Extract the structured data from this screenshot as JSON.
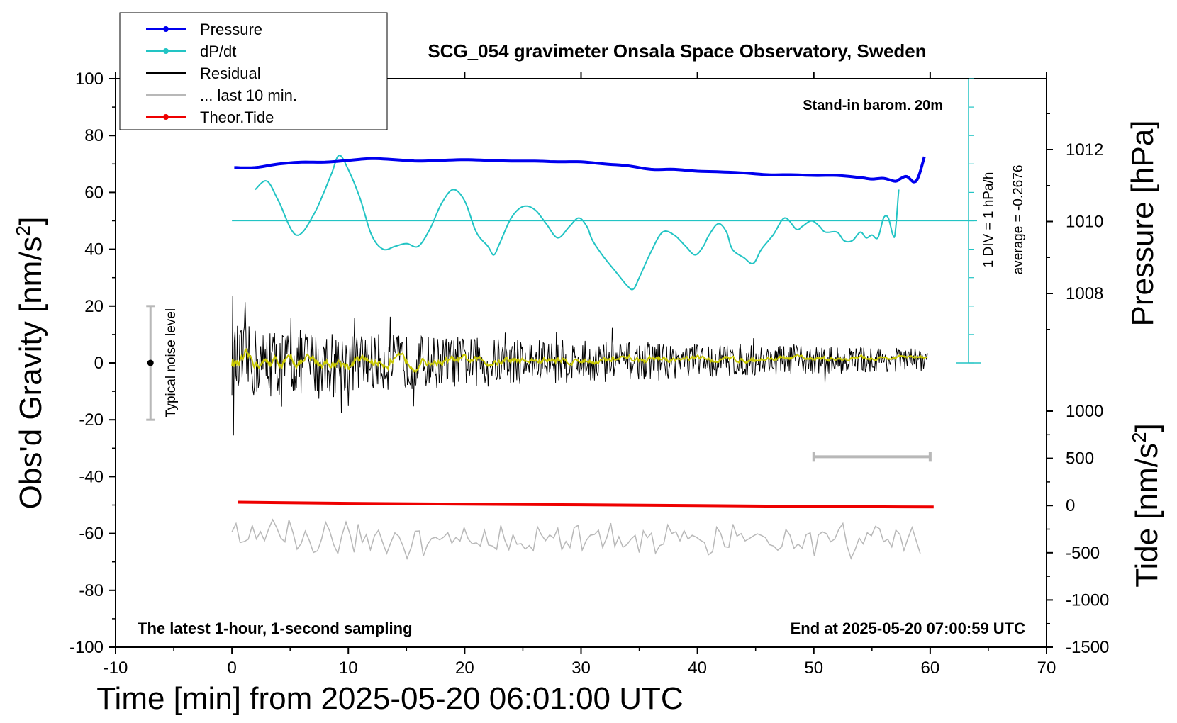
{
  "chart_data": {
    "type": "line",
    "title": "SCG_054 gravimeter Onsala Space Observatory, Sweden",
    "xlabel": "Time [min] from 2025-05-20 06:01:00 UTC",
    "ylabel_left_main": "Obs'd Gravity [nm/s",
    "ylabel_left_sup": "2",
    "ylabel_left_end": "]",
    "ylabel_right_top": "Pressure [hPa]",
    "ylabel_right_bottom_main": "Tide [nm/s",
    "ylabel_right_bottom_sup": "2",
    "ylabel_right_bottom_end": "]",
    "xlim": [
      -10,
      70
    ],
    "ylim": [
      -100,
      100
    ],
    "pressure_axis": {
      "range": [
        1006,
        1014
      ],
      "ticks": [
        1008,
        1010,
        1012
      ]
    },
    "tide_axis": {
      "range": [
        -1500,
        1000
      ],
      "ticks": [
        1000,
        500,
        0,
        -500,
        -1000,
        -1500
      ]
    },
    "x_ticks": [
      -10,
      0,
      10,
      20,
      30,
      40,
      50,
      60,
      70
    ],
    "y_ticks": [
      100,
      80,
      60,
      40,
      20,
      0,
      -20,
      -40,
      -60,
      -80,
      -100
    ],
    "legend": [
      {
        "name": "Pressure",
        "color": "#0000ee",
        "marker": true
      },
      {
        "name": "dP/dt",
        "color": "#22c4c4",
        "marker": true
      },
      {
        "name": "Residual",
        "color": "#000000",
        "marker": false
      },
      {
        "name": "... last 10 min.",
        "color": "#b8b8b8",
        "marker": false
      },
      {
        "name": "Theor.Tide",
        "color": "#ee0000",
        "marker": true
      }
    ],
    "annotations": {
      "barom": "Stand-in barom. 20m",
      "latest": "The latest 1-hour, 1-second sampling",
      "end": "End at 2025-05-20 07:00:59 UTC",
      "noise": "Typical noise level",
      "dpdt_scale": "1 DIV = 1 hPa/h",
      "dpdt_average": "average = -0.2676"
    },
    "colors": {
      "pressure": "#0000ee",
      "dpdt": "#22c4c4",
      "residual": "#000000",
      "residual_smooth": "#c8c800",
      "last10": "#b8b8b8",
      "tide": "#ee0000",
      "noise_bar": "#b8b8b8"
    },
    "series": [
      {
        "name": "Pressure",
        "unit": "hPa",
        "points": [
          [
            0.2,
            1011.5
          ],
          [
            2,
            1011.5
          ],
          [
            4,
            1011.6
          ],
          [
            6,
            1011.65
          ],
          [
            8,
            1011.65
          ],
          [
            10,
            1011.7
          ],
          [
            12,
            1011.75
          ],
          [
            14,
            1011.72
          ],
          [
            16,
            1011.68
          ],
          [
            18,
            1011.7
          ],
          [
            20,
            1011.72
          ],
          [
            22,
            1011.7
          ],
          [
            24,
            1011.68
          ],
          [
            26,
            1011.68
          ],
          [
            28,
            1011.66
          ],
          [
            30,
            1011.66
          ],
          [
            32,
            1011.6
          ],
          [
            34,
            1011.55
          ],
          [
            36,
            1011.45
          ],
          [
            38,
            1011.45
          ],
          [
            40,
            1011.4
          ],
          [
            42,
            1011.38
          ],
          [
            44,
            1011.35
          ],
          [
            46,
            1011.3
          ],
          [
            48,
            1011.3
          ],
          [
            50,
            1011.28
          ],
          [
            52,
            1011.28
          ],
          [
            54,
            1011.22
          ],
          [
            55,
            1011.18
          ],
          [
            56,
            1011.2
          ],
          [
            57,
            1011.12
          ],
          [
            57.5,
            1011.2
          ],
          [
            58,
            1011.25
          ],
          [
            58.6,
            1011.1
          ],
          [
            59,
            1011.25
          ],
          [
            59.5,
            1011.8
          ]
        ]
      },
      {
        "name": "dP/dt",
        "unit": "hPa/h",
        "points": [
          [
            2,
            61
          ],
          [
            3,
            64
          ],
          [
            4,
            57
          ],
          [
            5.5,
            45
          ],
          [
            7,
            52
          ],
          [
            8.5,
            66
          ],
          [
            9.2,
            73
          ],
          [
            10,
            68
          ],
          [
            11,
            58
          ],
          [
            12,
            45
          ],
          [
            13,
            40
          ],
          [
            14,
            41
          ],
          [
            15,
            42
          ],
          [
            16,
            41
          ],
          [
            17,
            47
          ],
          [
            18,
            56
          ],
          [
            19,
            61
          ],
          [
            20,
            57
          ],
          [
            21,
            46
          ],
          [
            22,
            41
          ],
          [
            22.5,
            38
          ],
          [
            23,
            42
          ],
          [
            24,
            51
          ],
          [
            25,
            55
          ],
          [
            26,
            54
          ],
          [
            27,
            49
          ],
          [
            28,
            44
          ],
          [
            29,
            48
          ],
          [
            29.8,
            51
          ],
          [
            30.5,
            48
          ],
          [
            31,
            43
          ],
          [
            32,
            37
          ],
          [
            33,
            32
          ],
          [
            34,
            27
          ],
          [
            34.5,
            26
          ],
          [
            35,
            30
          ],
          [
            36,
            39
          ],
          [
            37,
            46
          ],
          [
            38,
            45
          ],
          [
            39,
            41
          ],
          [
            39.8,
            38
          ],
          [
            40.5,
            41
          ],
          [
            41,
            45
          ],
          [
            41.8,
            49
          ],
          [
            42.5,
            46
          ],
          [
            43,
            40
          ],
          [
            44,
            37
          ],
          [
            44.8,
            35
          ],
          [
            45.5,
            40
          ],
          [
            46.5,
            45
          ],
          [
            47.5,
            51
          ],
          [
            48.5,
            47
          ],
          [
            49,
            48
          ],
          [
            49.8,
            50
          ],
          [
            50.5,
            48
          ],
          [
            51,
            46
          ],
          [
            52,
            46
          ],
          [
            52.6,
            43
          ],
          [
            53.3,
            43
          ],
          [
            54,
            46
          ],
          [
            54.5,
            44
          ],
          [
            55,
            45
          ],
          [
            55.5,
            44
          ],
          [
            56,
            51
          ],
          [
            56.4,
            51
          ],
          [
            56.8,
            45
          ],
          [
            57,
            46
          ],
          [
            57.3,
            61
          ]
        ]
      },
      {
        "name": "Residual",
        "unit": "nm/s2",
        "start": 0,
        "end": 59.8,
        "amplitude_early": 14,
        "amplitude_late": 4
      },
      {
        "name": "Theor.Tide",
        "unit": "nm/s2",
        "points": [
          [
            0.5,
            -49
          ],
          [
            10,
            -49.4
          ],
          [
            20,
            -49.7
          ],
          [
            30,
            -49.9
          ],
          [
            40,
            -50.2
          ],
          [
            50,
            -50.5
          ],
          [
            60.3,
            -50.7
          ]
        ]
      },
      {
        "name": "... last 10 min.",
        "start": 0,
        "end": 59.5,
        "center": -62,
        "amplitude": 4.5
      }
    ],
    "noise_level": {
      "x": -7,
      "low": -20,
      "high": 20,
      "center": 0
    },
    "last10_bar": {
      "from": 50,
      "to": 60,
      "y": -33
    }
  }
}
